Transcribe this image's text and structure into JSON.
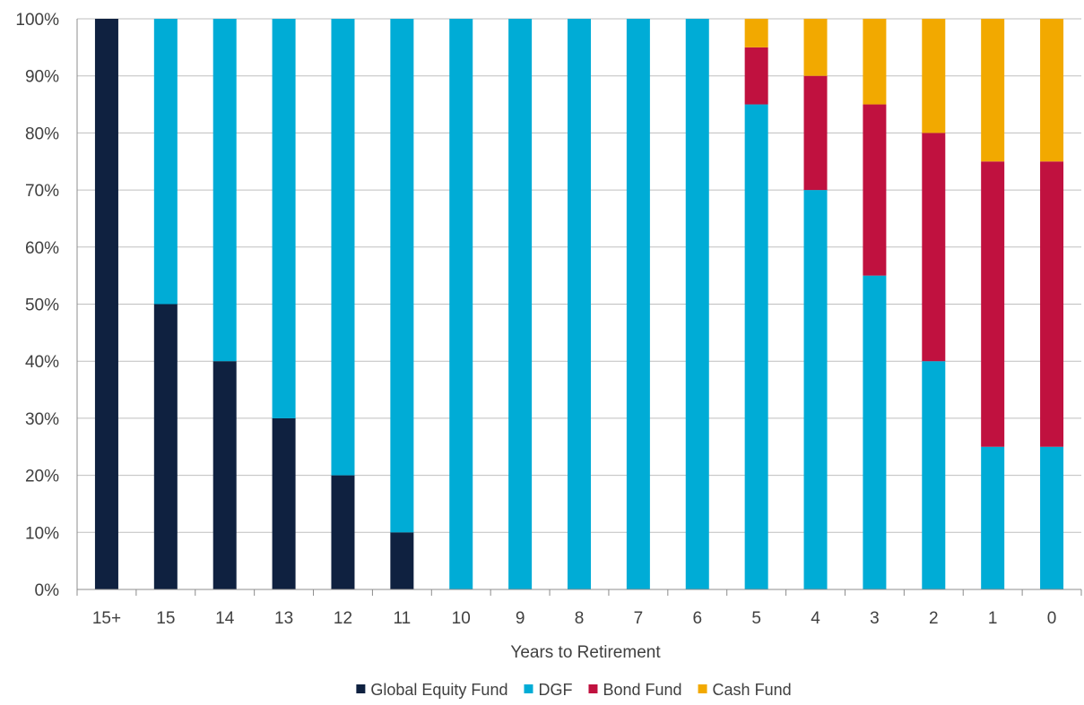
{
  "chart_data": {
    "type": "bar",
    "stacked": true,
    "title": "",
    "xlabel": "Years to Retirement",
    "ylabel": "",
    "ylim": [
      0,
      100
    ],
    "yticks": [
      "0%",
      "10%",
      "20%",
      "30%",
      "40%",
      "50%",
      "60%",
      "70%",
      "80%",
      "90%",
      "100%"
    ],
    "grid": true,
    "legend_position": "bottom",
    "categories": [
      "15+",
      "15",
      "14",
      "13",
      "12",
      "11",
      "10",
      "9",
      "8",
      "7",
      "6",
      "5",
      "4",
      "3",
      "2",
      "1",
      "0"
    ],
    "series": [
      {
        "name": "Global Equity Fund",
        "color": "#0f2140",
        "values": [
          100,
          50,
          40,
          30,
          20,
          10,
          0,
          0,
          0,
          0,
          0,
          0,
          0,
          0,
          0,
          0,
          0
        ]
      },
      {
        "name": "DGF",
        "color": "#00acd6",
        "values": [
          0,
          50,
          60,
          70,
          80,
          90,
          100,
          100,
          100,
          100,
          100,
          85,
          70,
          55,
          40,
          25,
          25
        ]
      },
      {
        "name": "Bond Fund",
        "color": "#c0113f",
        "values": [
          0,
          0,
          0,
          0,
          0,
          0,
          0,
          0,
          0,
          0,
          0,
          10,
          20,
          30,
          40,
          50,
          50
        ]
      },
      {
        "name": "Cash Fund",
        "color": "#f2a900",
        "values": [
          0,
          0,
          0,
          0,
          0,
          0,
          0,
          0,
          0,
          0,
          0,
          5,
          10,
          15,
          20,
          25,
          25
        ]
      }
    ]
  }
}
